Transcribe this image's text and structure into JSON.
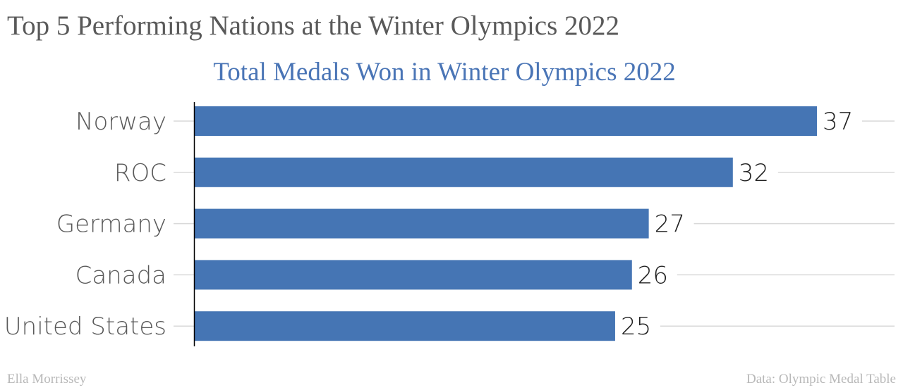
{
  "page": {
    "title": "Top 5 Performing Nations at the Winter Olympics 2022",
    "author": "Ella Morrissey",
    "source": "Data: Olympic Medal Table"
  },
  "chart_data": {
    "type": "bar",
    "orientation": "horizontal",
    "title": "Total Medals Won in Winter Olympics 2022",
    "categories": [
      "Norway",
      "ROC",
      "Germany",
      "Canada",
      "United States"
    ],
    "values": [
      37,
      32,
      27,
      26,
      25
    ],
    "xlim": [
      0,
      37
    ],
    "grid": true,
    "data_labels": true,
    "colors": {
      "bar": "#4575b4",
      "title": "#4a75b6",
      "grid": "#d9d9d9",
      "axis": "#000000",
      "label": "#595959"
    }
  }
}
